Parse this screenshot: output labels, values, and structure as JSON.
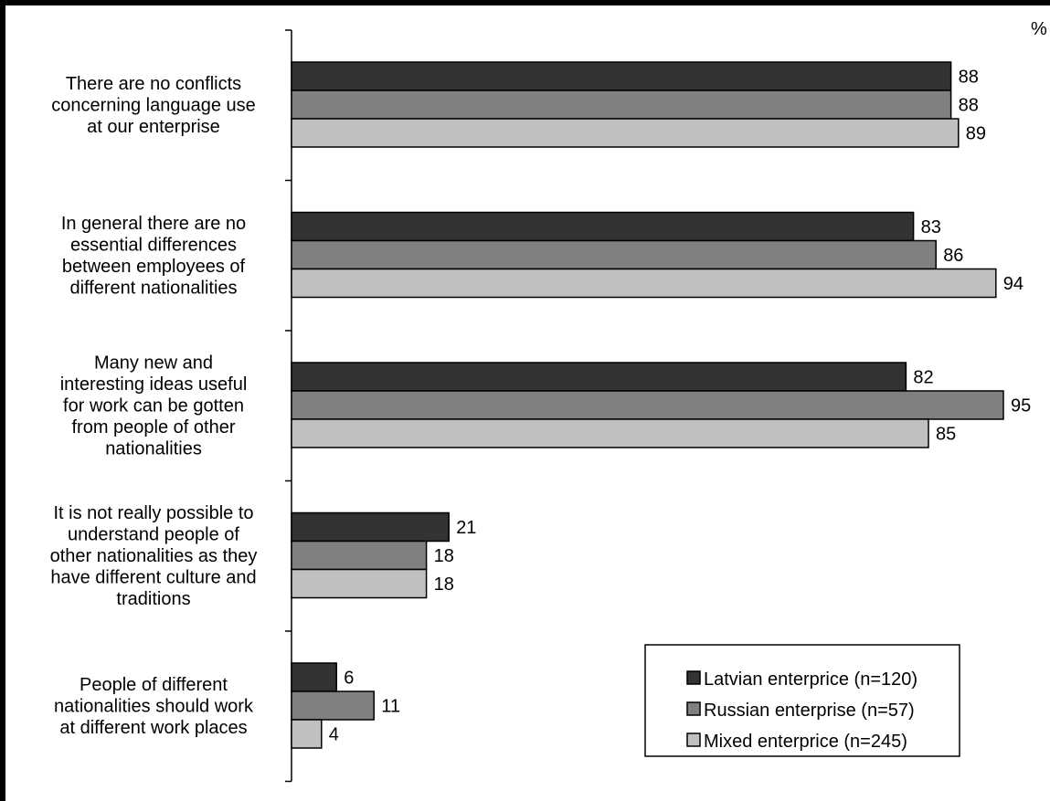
{
  "chart_data": {
    "type": "bar",
    "orientation": "horizontal",
    "unit": "%",
    "categories": [
      [
        "There are no conflicts",
        "concerning language use",
        "at our enterprise"
      ],
      [
        "In general there are no",
        "essential differences",
        "between employees of",
        "different nationalities"
      ],
      [
        "Many  new and",
        "interesting ideas useful",
        "for work can be gotten",
        "from people of other",
        "nationalities"
      ],
      [
        "It is not really possible to",
        "understand  people of",
        "other nationalities as they",
        "have different culture and",
        "traditions"
      ],
      [
        "People of different",
        "nationalities should work",
        "at different work places"
      ]
    ],
    "series": [
      {
        "name": "Latvian enterprice (n=120)",
        "color": "#333333",
        "values": [
          88,
          83,
          82,
          21,
          6
        ]
      },
      {
        "name": "Russian enterprise (n=57)",
        "color": "#808080",
        "values": [
          88,
          86,
          95,
          18,
          11
        ]
      },
      {
        "name": "Mixed enterprice (n=245)",
        "color": "#c0c0c0",
        "values": [
          89,
          94,
          85,
          18,
          4
        ]
      }
    ],
    "xlim": [
      0,
      100
    ],
    "grid": false,
    "legend_position": "bottom-right"
  }
}
